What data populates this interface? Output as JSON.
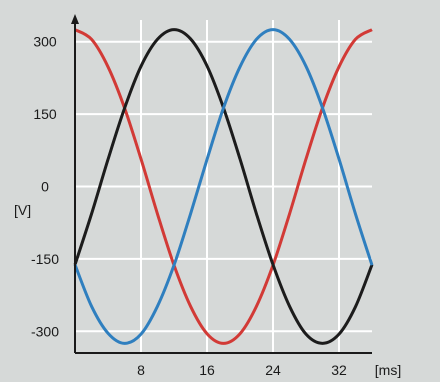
{
  "chart_data": {
    "type": "line",
    "title": "",
    "xlabel": "[ms]",
    "ylabel": "[V]",
    "xlim": [
      0,
      36
    ],
    "ylim": [
      -345,
      345
    ],
    "grid": true,
    "x_ticks": [
      8,
      16,
      24,
      32
    ],
    "y_ticks": [
      300,
      150,
      0,
      -150,
      -300
    ],
    "x_tick_labels": [
      "8",
      "16",
      "24",
      "32"
    ],
    "y_tick_labels": [
      "300",
      "150",
      "0",
      "-150",
      "-300"
    ],
    "x": [
      0,
      2,
      4,
      6,
      8,
      10,
      12,
      14,
      16,
      18,
      20,
      22,
      24,
      26,
      28,
      30,
      32,
      34,
      36
    ],
    "series": [
      {
        "color": "#d23a36",
        "values": [
          325,
          305,
          248,
          163,
          57,
          -57,
          -163,
          -248,
          -305,
          -325,
          -305,
          -248,
          -163,
          -57,
          57,
          163,
          248,
          305,
          325
        ]
      },
      {
        "color": "#1c1c1c",
        "values": [
          -162,
          -57,
          56,
          162,
          249,
          305,
          325,
          306,
          250,
          163,
          57,
          -57,
          -162,
          -248,
          -306,
          -325,
          -306,
          -249,
          -162
        ]
      },
      {
        "color": "#2f7fbf",
        "values": [
          -162,
          -248,
          -304,
          -325,
          -306,
          -248,
          -163,
          -57,
          56,
          163,
          248,
          305,
          325,
          305,
          249,
          163,
          57,
          -57,
          -163
        ]
      }
    ],
    "plot_bg": "#d6d9d8",
    "axis_color": "#1a1a1a",
    "grid_color": "#ffffff"
  }
}
